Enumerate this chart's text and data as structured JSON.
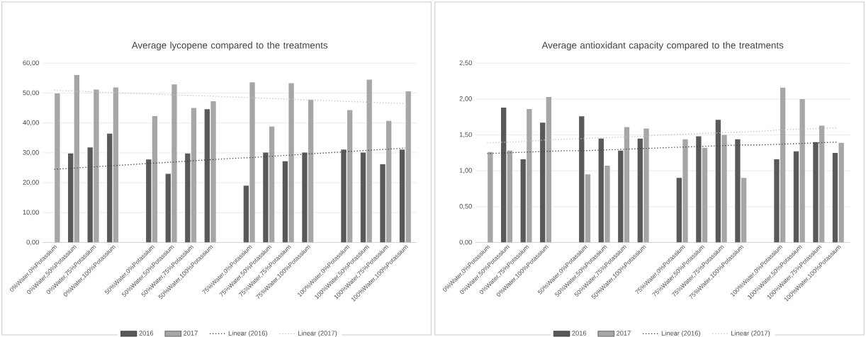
{
  "chart_data": [
    {
      "type": "bar",
      "title": "Average lycopene compared to the treatments",
      "categories": [
        "0%Water,0%Potassium",
        "0%Water,50%Potassium",
        "0%Water,75%Potassium",
        "0%Water,100%Potassium",
        null,
        "50%Water,0%Potassium",
        "50%Water,50%Potassium",
        "50%Water,75%Potassium",
        "50%Water,100%Potassium",
        null,
        "75%Water,0%Potassium",
        "75%Water,50%Potassium",
        "75%Water,75%Potassium",
        "75%Water,100%Potassium",
        null,
        "100%Water,0%Potassium",
        "100%Water,50%Potassium",
        "100%Water,75%Potassium",
        "100%Water,100%Potassium"
      ],
      "series": [
        {
          "name": "2016",
          "color": "#595959",
          "values": [
            null,
            29.8,
            31.8,
            36.4,
            null,
            27.8,
            23.0,
            29.8,
            44.6,
            null,
            19.0,
            30.1,
            27.2,
            30.1,
            null,
            31.1,
            30.1,
            26.2,
            31.1
          ]
        },
        {
          "name": "2017",
          "color": "#a6a6a6",
          "values": [
            49.9,
            56.1,
            51.2,
            51.9,
            null,
            42.3,
            52.9,
            45.0,
            47.3,
            null,
            53.6,
            38.8,
            53.3,
            47.8,
            null,
            44.3,
            54.5,
            40.7,
            50.6
          ]
        },
        {
          "name": "Linear (2016)",
          "type": "line",
          "line_style": "dotted",
          "color": "#404040",
          "values": [
            24.5,
            24.9,
            25.3,
            25.7,
            26.1,
            26.5,
            26.9,
            27.3,
            27.7,
            28.1,
            28.4,
            28.8,
            29.2,
            29.6,
            30.0,
            30.4,
            30.8,
            31.2,
            31.6
          ]
        },
        {
          "name": "Linear (2017)",
          "type": "line",
          "line_style": "dotted",
          "color": "#c0c0c0",
          "values": [
            50.9,
            50.7,
            50.4,
            50.2,
            49.9,
            49.7,
            49.4,
            49.2,
            49.0,
            48.7,
            48.5,
            48.2,
            48.0,
            47.7,
            47.5,
            47.2,
            47.0,
            46.7,
            46.5
          ]
        }
      ],
      "ylim": [
        0,
        60
      ],
      "yticks": [
        {
          "value": 0,
          "label": "0,00"
        },
        {
          "value": 10,
          "label": "10,00"
        },
        {
          "value": 20,
          "label": "20,00"
        },
        {
          "value": 30,
          "label": "30,00"
        },
        {
          "value": 40,
          "label": "40,00"
        },
        {
          "value": 50,
          "label": "50,00"
        },
        {
          "value": 60,
          "label": "60,00"
        }
      ],
      "grid": "y",
      "legend": "bottom",
      "marker": "none"
    },
    {
      "type": "bar",
      "title": "Average antioxidant capacity compared to the treatments",
      "categories": [
        "0%Water,0%Potassium",
        "0%Water,50%Potassium",
        "0%Water,75%Potassium",
        "0%Water,100%Potassium",
        null,
        "50%Water,0%Potassium",
        "50%Water,50%Potassium",
        "50%Water,75%Potassium",
        "50%Water,100%Potassium",
        null,
        "75%Water,0%Potassium",
        "75%Water,50%Potassium",
        "75%Water,75%Potassium",
        "75%Water,100%Potassium",
        null,
        "100%Water,0%Potassium",
        "100%Water,50%Potassium",
        "100%Water,75%Potassium",
        "100%Water,100%Potassium"
      ],
      "series": [
        {
          "name": "2016",
          "color": "#595959",
          "values": [
            null,
            1.88,
            1.16,
            1.67,
            null,
            1.76,
            1.45,
            1.28,
            1.45,
            null,
            0.9,
            1.48,
            1.71,
            1.44,
            null,
            1.16,
            1.27,
            1.4,
            1.25
          ]
        },
        {
          "name": "2017",
          "color": "#a6a6a6",
          "values": [
            1.26,
            1.28,
            1.86,
            2.03,
            null,
            0.95,
            1.07,
            1.61,
            1.59,
            null,
            1.44,
            1.32,
            1.5,
            0.9,
            null,
            2.16,
            2.0,
            1.63,
            1.39
          ]
        },
        {
          "name": "Linear (2016)",
          "type": "line",
          "line_style": "dotted",
          "color": "#404040",
          "values": [
            1.24,
            1.25,
            1.26,
            1.27,
            1.28,
            1.28,
            1.29,
            1.3,
            1.31,
            1.32,
            1.33,
            1.34,
            1.35,
            1.36,
            1.36,
            1.37,
            1.38,
            1.39,
            1.4
          ]
        },
        {
          "name": "Linear (2017)",
          "type": "line",
          "line_style": "dotted",
          "color": "#c0c0c0",
          "values": [
            1.39,
            1.4,
            1.41,
            1.43,
            1.44,
            1.45,
            1.46,
            1.47,
            1.48,
            1.5,
            1.51,
            1.52,
            1.53,
            1.54,
            1.55,
            1.57,
            1.58,
            1.59,
            1.6
          ]
        }
      ],
      "ylim": [
        0,
        2.5
      ],
      "yticks": [
        {
          "value": 0,
          "label": "0,00"
        },
        {
          "value": 0.5,
          "label": "0,50"
        },
        {
          "value": 1,
          "label": "1,00"
        },
        {
          "value": 1.5,
          "label": "1,50"
        },
        {
          "value": 2,
          "label": "2,00"
        },
        {
          "value": 2.5,
          "label": "2,50"
        }
      ],
      "grid": "y",
      "legend": "bottom",
      "marker": "none"
    }
  ]
}
